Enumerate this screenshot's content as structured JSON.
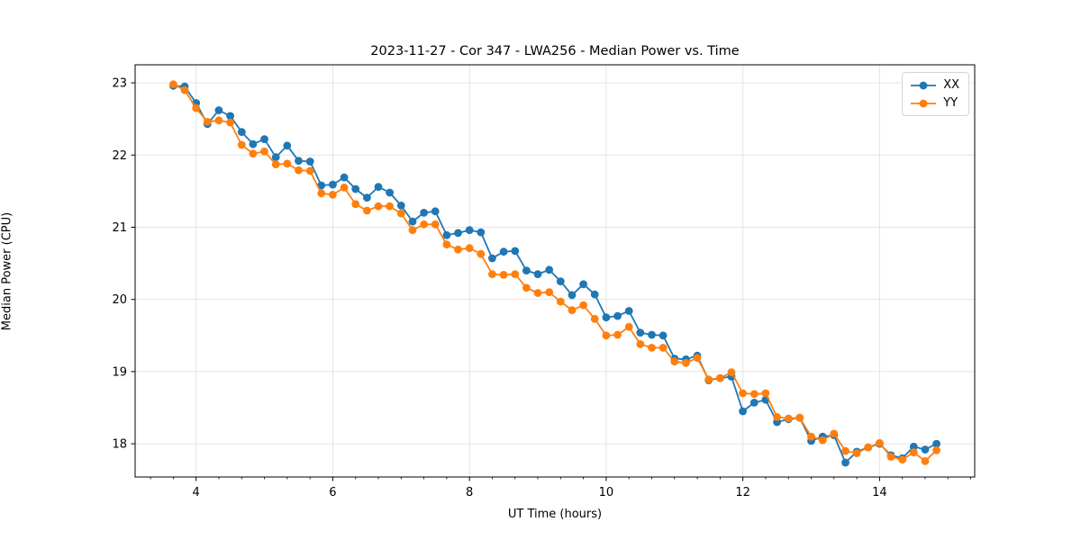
{
  "chart_data": {
    "type": "line",
    "title": "2023-11-27 - Cor 347 - LWA256 - Median Power vs. Time",
    "xlabel": "UT Time (hours)",
    "ylabel": "Median Power (CPU)",
    "xlim": [
      3.108,
      15.392
    ],
    "ylim": [
      17.54,
      23.25
    ],
    "xticks": [
      4,
      6,
      8,
      10,
      12,
      14
    ],
    "yticks": [
      18,
      19,
      20,
      21,
      22,
      23
    ],
    "minor_xtick_step": 0.33333,
    "grid": true,
    "grid_color": "#e4e4e4",
    "legend_position": "upper right",
    "marker": "circle",
    "x": [
      3.667,
      3.833,
      4.0,
      4.167,
      4.333,
      4.5,
      4.667,
      4.833,
      5.0,
      5.167,
      5.333,
      5.5,
      5.667,
      5.833,
      6.0,
      6.167,
      6.333,
      6.5,
      6.667,
      6.833,
      7.0,
      7.167,
      7.333,
      7.5,
      7.667,
      7.833,
      8.0,
      8.167,
      8.333,
      8.5,
      8.667,
      8.833,
      9.0,
      9.167,
      9.333,
      9.5,
      9.667,
      9.833,
      10.0,
      10.167,
      10.333,
      10.5,
      10.667,
      10.833,
      11.0,
      11.167,
      11.333,
      11.5,
      11.667,
      11.833,
      12.0,
      12.167,
      12.333,
      12.5,
      12.667,
      12.833,
      13.0,
      13.167,
      13.333,
      13.5,
      13.667,
      13.833,
      14.0,
      14.167,
      14.333,
      14.5,
      14.667,
      14.833
    ],
    "series": [
      {
        "name": "XX",
        "color": "#1f77b4",
        "values": [
          22.96,
          22.95,
          22.72,
          22.43,
          22.62,
          22.54,
          22.32,
          22.15,
          22.22,
          21.97,
          22.13,
          21.92,
          21.91,
          21.58,
          21.59,
          21.69,
          21.53,
          21.41,
          21.56,
          21.48,
          21.3,
          21.08,
          21.2,
          21.22,
          20.89,
          20.92,
          20.96,
          20.93,
          20.57,
          20.66,
          20.67,
          20.4,
          20.35,
          20.41,
          20.25,
          20.06,
          20.21,
          20.07,
          19.75,
          19.77,
          19.84,
          19.54,
          19.51,
          19.5,
          19.18,
          19.17,
          19.22,
          18.88,
          18.91,
          18.93,
          18.45,
          18.57,
          18.61,
          18.3,
          18.34,
          18.36,
          18.04,
          18.1,
          18.12,
          17.74,
          17.89,
          17.95,
          18.0,
          17.84,
          17.8,
          17.96,
          17.92,
          18.0
        ]
      },
      {
        "name": "YY",
        "color": "#ff7f0e",
        "values": [
          22.98,
          22.9,
          22.65,
          22.46,
          22.48,
          22.45,
          22.14,
          22.02,
          22.05,
          21.87,
          21.88,
          21.79,
          21.78,
          21.47,
          21.45,
          21.55,
          21.32,
          21.23,
          21.29,
          21.29,
          21.19,
          20.96,
          21.04,
          21.04,
          20.76,
          20.69,
          20.71,
          20.63,
          20.35,
          20.34,
          20.35,
          20.16,
          20.09,
          20.1,
          19.97,
          19.85,
          19.92,
          19.73,
          19.5,
          19.51,
          19.62,
          19.38,
          19.33,
          19.33,
          19.14,
          19.12,
          19.19,
          18.89,
          18.91,
          18.99,
          18.7,
          18.69,
          18.7,
          18.37,
          18.35,
          18.36,
          18.1,
          18.05,
          18.14,
          17.9,
          17.87,
          17.95,
          18.01,
          17.82,
          17.78,
          17.88,
          17.76,
          17.91
        ]
      }
    ]
  }
}
